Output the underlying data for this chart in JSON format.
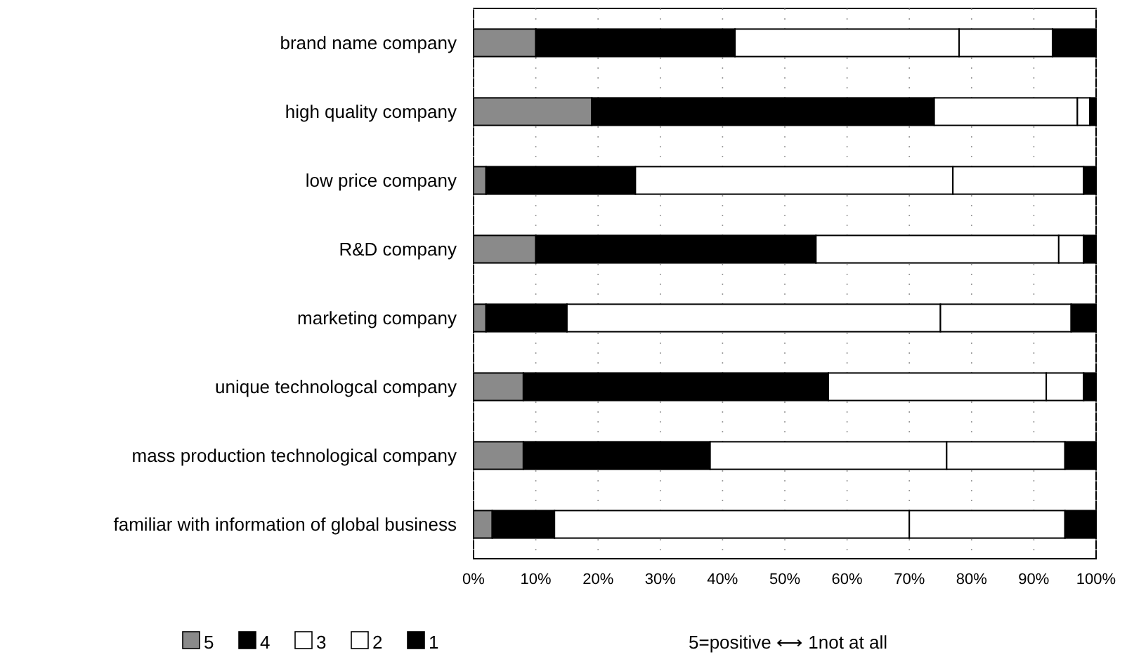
{
  "chart_data": {
    "type": "bar",
    "orientation": "horizontal",
    "stacked": true,
    "categories": [
      "brand name company",
      "high quality company",
      "low price company",
      "R&D company",
      "marketing company",
      "unique technologcal company",
      "mass production technological company",
      "familiar with information of global business"
    ],
    "series": [
      {
        "name": "5",
        "color": "#8a8a8a",
        "values": [
          10,
          19,
          2,
          10,
          2,
          8,
          8,
          3
        ]
      },
      {
        "name": "4",
        "color": "#000000",
        "values": [
          32,
          55,
          24,
          45,
          13,
          49,
          30,
          10
        ]
      },
      {
        "name": "3",
        "color": "#ffffff",
        "values": [
          36,
          23,
          51,
          39,
          60,
          35,
          38,
          57
        ]
      },
      {
        "name": "2",
        "color": "#ffffff",
        "values": [
          15,
          2,
          21,
          4,
          21,
          6,
          19,
          25
        ]
      },
      {
        "name": "1",
        "color": "#000000",
        "values": [
          7,
          1,
          2,
          2,
          4,
          2,
          5,
          5
        ]
      }
    ],
    "xlim": [
      0,
      100
    ],
    "xticks": [
      {
        "value": 0,
        "label": "0%"
      },
      {
        "value": 10,
        "label": "10%"
      },
      {
        "value": 20,
        "label": "20%"
      },
      {
        "value": 30,
        "label": "30%"
      },
      {
        "value": 40,
        "label": "40%"
      },
      {
        "value": 50,
        "label": "50%"
      },
      {
        "value": 60,
        "label": "60%"
      },
      {
        "value": 70,
        "label": "70%"
      },
      {
        "value": 80,
        "label": "80%"
      },
      {
        "value": 90,
        "label": "90%"
      },
      {
        "value": 100,
        "label": "100%"
      }
    ],
    "grid": "x",
    "legend": "bottom left",
    "annotations": [
      "5=positive ⟷ 1not at all"
    ]
  }
}
